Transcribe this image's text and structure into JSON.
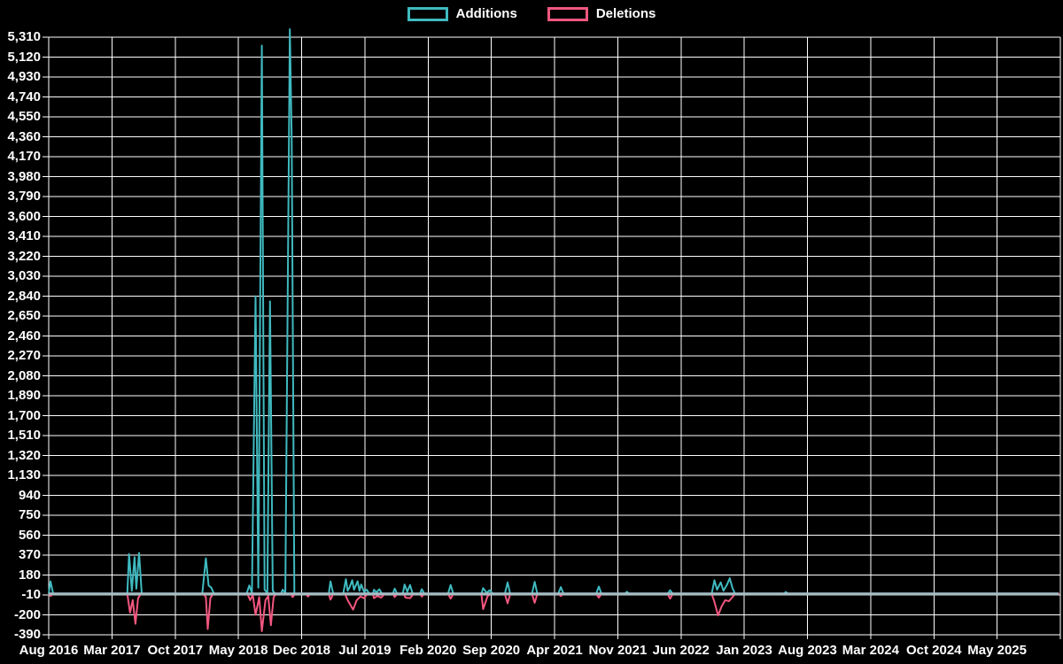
{
  "legend": {
    "items": [
      {
        "label": "Additions",
        "color": "#3fbac0"
      },
      {
        "label": "Deletions",
        "color": "#f2577f"
      }
    ]
  },
  "chart_data": {
    "type": "line",
    "title": "",
    "xlabel": "",
    "ylabel": "",
    "background": "#000000",
    "grid": true,
    "grid_color": "#ffffff",
    "axis_text_color": "#ffffff",
    "legend_position": "top-center",
    "x_tick_labels": [
      "Aug 2016",
      "Mar 2017",
      "Oct 2017",
      "May 2018",
      "Dec 2018",
      "Jul 2019",
      "Feb 2020",
      "Sep 2020",
      "Apr 2021",
      "Nov 2021",
      "Jun 2022",
      "Jan 2023",
      "Aug 2023",
      "Mar 2024",
      "Oct 2024",
      "May 2025"
    ],
    "months_per_x_gridline": 7,
    "x_axis_total_months": 112,
    "y_ticks": [
      5310,
      5120,
      4930,
      4740,
      4550,
      4360,
      4170,
      3980,
      3790,
      3600,
      3410,
      3220,
      3030,
      2840,
      2650,
      2460,
      2270,
      2080,
      1890,
      1700,
      1510,
      1320,
      1130,
      940,
      750,
      560,
      370,
      180,
      -10,
      -200,
      -390
    ],
    "y_min": -390,
    "y_max": 5310,
    "y_step": 190,
    "zero_line": {
      "value": 0,
      "color": "#a6bec6",
      "width": 3
    },
    "series": [
      {
        "name": "Additions",
        "color": "#3fbac0",
        "points": [
          [
            0,
            0
          ],
          [
            0.2,
            120
          ],
          [
            0.5,
            0
          ],
          [
            8.7,
            0
          ],
          [
            8.9,
            380
          ],
          [
            9.2,
            30
          ],
          [
            9.5,
            350
          ],
          [
            9.7,
            50
          ],
          [
            10.0,
            390
          ],
          [
            10.3,
            0
          ],
          [
            17.0,
            0
          ],
          [
            17.4,
            340
          ],
          [
            17.7,
            80
          ],
          [
            18.0,
            60
          ],
          [
            18.3,
            0
          ],
          [
            21.9,
            0
          ],
          [
            22.2,
            80
          ],
          [
            22.5,
            10
          ],
          [
            22.9,
            2840
          ],
          [
            23.2,
            60
          ],
          [
            23.6,
            5230
          ],
          [
            23.9,
            40
          ],
          [
            24.2,
            10
          ],
          [
            24.5,
            2790
          ],
          [
            24.8,
            30
          ],
          [
            25.1,
            0
          ],
          [
            25.7,
            0
          ],
          [
            25.9,
            40
          ],
          [
            26.2,
            10
          ],
          [
            26.7,
            5390
          ],
          [
            26.9,
            4330
          ],
          [
            27.2,
            0
          ],
          [
            31.0,
            0
          ],
          [
            31.2,
            120
          ],
          [
            31.5,
            0
          ],
          [
            32.6,
            0
          ],
          [
            32.9,
            140
          ],
          [
            33.1,
            30
          ],
          [
            33.3,
            60
          ],
          [
            33.6,
            130
          ],
          [
            33.8,
            40
          ],
          [
            34.2,
            120
          ],
          [
            34.4,
            30
          ],
          [
            34.6,
            90
          ],
          [
            34.9,
            20
          ],
          [
            35.2,
            40
          ],
          [
            35.5,
            0
          ],
          [
            35.9,
            0
          ],
          [
            36.0,
            40
          ],
          [
            36.3,
            15
          ],
          [
            36.6,
            45
          ],
          [
            36.9,
            0
          ],
          [
            38.1,
            0
          ],
          [
            38.3,
            50
          ],
          [
            38.6,
            0
          ],
          [
            39.2,
            0
          ],
          [
            39.4,
            90
          ],
          [
            39.7,
            20
          ],
          [
            40.0,
            85
          ],
          [
            40.3,
            0
          ],
          [
            41.1,
            0
          ],
          [
            41.3,
            45
          ],
          [
            41.6,
            0
          ],
          [
            44.2,
            0
          ],
          [
            44.5,
            85
          ],
          [
            44.8,
            0
          ],
          [
            47.9,
            0
          ],
          [
            48.1,
            55
          ],
          [
            48.5,
            10
          ],
          [
            48.8,
            35
          ],
          [
            49.2,
            0
          ],
          [
            50.5,
            0
          ],
          [
            50.8,
            110
          ],
          [
            51.1,
            0
          ],
          [
            53.5,
            0
          ],
          [
            53.8,
            115
          ],
          [
            54.1,
            0
          ],
          [
            56.4,
            0
          ],
          [
            56.7,
            65
          ],
          [
            57.0,
            0
          ],
          [
            60.6,
            0
          ],
          [
            60.9,
            70
          ],
          [
            61.2,
            0
          ],
          [
            63.8,
            0
          ],
          [
            64.0,
            20
          ],
          [
            64.3,
            0
          ],
          [
            68.5,
            0
          ],
          [
            68.8,
            35
          ],
          [
            69.1,
            0
          ],
          [
            73.4,
            0
          ],
          [
            73.7,
            130
          ],
          [
            74.0,
            40
          ],
          [
            74.4,
            110
          ],
          [
            74.7,
            30
          ],
          [
            75.1,
            90
          ],
          [
            75.4,
            150
          ],
          [
            75.7,
            55
          ],
          [
            76.0,
            0
          ],
          [
            81.4,
            0
          ],
          [
            81.6,
            18
          ],
          [
            81.9,
            0
          ],
          [
            111.9,
            0
          ]
        ]
      },
      {
        "name": "Deletions",
        "color": "#f2577f",
        "points": [
          [
            0,
            0
          ],
          [
            0.2,
            -20
          ],
          [
            0.5,
            0
          ],
          [
            8.7,
            0
          ],
          [
            9.0,
            -180
          ],
          [
            9.3,
            -60
          ],
          [
            9.6,
            -285
          ],
          [
            9.9,
            -40
          ],
          [
            10.2,
            0
          ],
          [
            17.1,
            0
          ],
          [
            17.4,
            -30
          ],
          [
            17.6,
            -335
          ],
          [
            17.9,
            -40
          ],
          [
            18.2,
            0
          ],
          [
            22.0,
            0
          ],
          [
            22.3,
            -60
          ],
          [
            22.6,
            -10
          ],
          [
            22.9,
            -200
          ],
          [
            23.3,
            -30
          ],
          [
            23.6,
            -355
          ],
          [
            24.0,
            -60
          ],
          [
            24.3,
            -20
          ],
          [
            24.6,
            -300
          ],
          [
            24.9,
            -30
          ],
          [
            25.2,
            0
          ],
          [
            26.8,
            0
          ],
          [
            27.0,
            -30
          ],
          [
            27.3,
            0
          ],
          [
            28.5,
            0
          ],
          [
            28.7,
            -25
          ],
          [
            29.0,
            0
          ],
          [
            31.0,
            0
          ],
          [
            31.2,
            -55
          ],
          [
            31.5,
            0
          ],
          [
            32.8,
            0
          ],
          [
            33.1,
            -60
          ],
          [
            33.7,
            -150
          ],
          [
            34.1,
            -60
          ],
          [
            34.5,
            -25
          ],
          [
            34.9,
            -40
          ],
          [
            35.3,
            0
          ],
          [
            35.9,
            0
          ],
          [
            36.0,
            -40
          ],
          [
            36.4,
            -20
          ],
          [
            36.8,
            -35
          ],
          [
            37.2,
            0
          ],
          [
            38.1,
            0
          ],
          [
            38.3,
            -30
          ],
          [
            38.6,
            0
          ],
          [
            39.3,
            0
          ],
          [
            39.5,
            -35
          ],
          [
            40.0,
            -40
          ],
          [
            40.4,
            0
          ],
          [
            41.1,
            0
          ],
          [
            41.3,
            -25
          ],
          [
            41.6,
            0
          ],
          [
            44.2,
            0
          ],
          [
            44.5,
            -45
          ],
          [
            44.8,
            0
          ],
          [
            47.9,
            0
          ],
          [
            48.1,
            -145
          ],
          [
            48.6,
            -20
          ],
          [
            49.0,
            0
          ],
          [
            50.5,
            0
          ],
          [
            50.8,
            -90
          ],
          [
            51.1,
            0
          ],
          [
            53.5,
            0
          ],
          [
            53.8,
            -85
          ],
          [
            54.1,
            0
          ],
          [
            56.4,
            0
          ],
          [
            56.7,
            -20
          ],
          [
            57.0,
            0
          ],
          [
            60.6,
            0
          ],
          [
            60.9,
            -35
          ],
          [
            61.2,
            0
          ],
          [
            68.5,
            0
          ],
          [
            68.8,
            -45
          ],
          [
            69.1,
            0
          ],
          [
            73.4,
            0
          ],
          [
            73.7,
            -75
          ],
          [
            74.1,
            -205
          ],
          [
            74.5,
            -120
          ],
          [
            74.9,
            -60
          ],
          [
            75.3,
            -70
          ],
          [
            75.7,
            -30
          ],
          [
            76.0,
            0
          ],
          [
            111.9,
            0
          ]
        ]
      }
    ]
  }
}
